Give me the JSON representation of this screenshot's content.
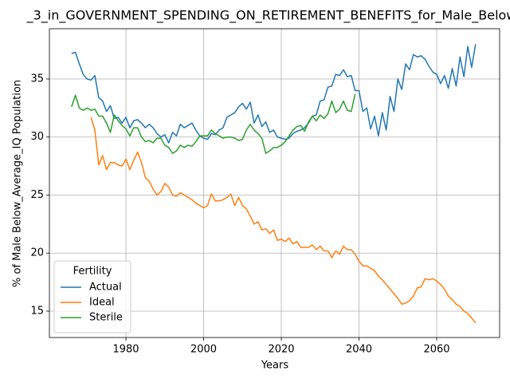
{
  "chart_data": {
    "type": "line",
    "title": "_3_in_GOVERNMENT_SPENDING_ON_RETIREMENT_BENEFITS_for_Male_Below_",
    "x_label": "Years",
    "y_label": "% of Male Below_Average_IQ Population",
    "legend_title": "Fertility",
    "legend_position": "lower left",
    "grid": true,
    "xlim": [
      1960.3,
      2076.2
    ],
    "ylim": [
      12.73,
      39.33
    ],
    "xticks": [
      1980,
      2000,
      2020,
      2040,
      2060
    ],
    "yticks": [
      15,
      20,
      25,
      30,
      35
    ],
    "x": [
      1966,
      1967,
      1968,
      1969,
      1970,
      1971,
      1972,
      1973,
      1974,
      1975,
      1976,
      1977,
      1978,
      1979,
      1980,
      1981,
      1982,
      1983,
      1984,
      1985,
      1986,
      1987,
      1988,
      1989,
      1990,
      1991,
      1992,
      1993,
      1994,
      1995,
      1996,
      1997,
      1998,
      1999,
      2000,
      2001,
      2002,
      2003,
      2004,
      2005,
      2006,
      2007,
      2008,
      2009,
      2010,
      2011,
      2012,
      2013,
      2014,
      2015,
      2016,
      2017,
      2018,
      2019,
      2020,
      2021,
      2022,
      2023,
      2024,
      2025,
      2026,
      2027,
      2028,
      2029,
      2030,
      2031,
      2032,
      2033,
      2034,
      2035,
      2036,
      2037,
      2038,
      2039,
      2040,
      2041,
      2042,
      2043,
      2044,
      2045,
      2046,
      2047,
      2048,
      2049,
      2050,
      2051,
      2052,
      2053,
      2054,
      2055,
      2056,
      2057,
      2058,
      2059,
      2060,
      2061,
      2062,
      2063,
      2064,
      2065,
      2066,
      2067,
      2068,
      2069,
      2070
    ],
    "series": [
      {
        "name": "Actual",
        "color": "#1f77b4",
        "values": [
          37.2,
          37.3,
          36.3,
          35.4,
          35.0,
          34.9,
          35.3,
          33.4,
          33.1,
          32.2,
          32.7,
          31.6,
          31.7,
          31.2,
          31.7,
          30.8,
          31.4,
          31.5,
          31.2,
          30.8,
          31.1,
          30.8,
          30.3,
          30.0,
          30.2,
          29.5,
          30.4,
          30.1,
          31.1,
          30.8,
          31.0,
          31.2,
          30.6,
          30.1,
          29.9,
          29.8,
          30.3,
          30.2,
          30.6,
          30.8,
          31.7,
          31.9,
          32.1,
          32.6,
          32.9,
          32.4,
          33.0,
          31.2,
          31.9,
          30.9,
          31.3,
          30.4,
          30.6,
          30.0,
          29.9,
          29.8,
          29.9,
          30.3,
          30.5,
          30.6,
          30.8,
          31.2,
          31.8,
          31.9,
          33.1,
          33.2,
          34.3,
          34.4,
          35.4,
          35.3,
          35.8,
          35.2,
          35.3,
          34.0,
          34.0,
          32.2,
          32.5,
          30.7,
          31.8,
          30.1,
          32.1,
          30.6,
          33.5,
          32.2,
          35.0,
          34.1,
          36.3,
          35.8,
          37.1,
          36.9,
          37.0,
          36.7,
          36.1,
          35.6,
          35.4,
          34.6,
          35.3,
          34.2,
          35.9,
          34.4,
          36.9,
          35.2,
          37.8,
          36.0,
          38.0
        ]
      },
      {
        "name": "Ideal",
        "color": "#ff7f0e",
        "values": [
          null,
          null,
          null,
          null,
          null,
          31.7,
          30.6,
          27.6,
          28.4,
          27.2,
          27.8,
          27.8,
          27.6,
          27.5,
          28.1,
          27.2,
          28.0,
          28.7,
          27.8,
          26.5,
          26.2,
          25.5,
          25.0,
          25.3,
          26.0,
          25.7,
          25.0,
          24.9,
          25.2,
          25.0,
          24.8,
          24.6,
          24.3,
          24.1,
          23.9,
          24.1,
          25.1,
          24.5,
          24.5,
          24.6,
          24.8,
          25.1,
          24.1,
          24.8,
          24.1,
          23.8,
          23.2,
          22.5,
          22.7,
          22.0,
          22.1,
          21.7,
          22.0,
          21.1,
          21.2,
          21.0,
          21.3,
          20.8,
          21.0,
          20.5,
          20.5,
          20.5,
          20.7,
          20.3,
          20.6,
          20.2,
          20.2,
          19.6,
          20.2,
          19.9,
          20.6,
          20.3,
          20.3,
          19.9,
          19.3,
          18.9,
          18.9,
          18.7,
          18.5,
          18.0,
          17.7,
          17.3,
          16.9,
          16.5,
          16.1,
          15.6,
          15.7,
          15.9,
          16.3,
          17.0,
          17.1,
          17.8,
          17.7,
          17.8,
          17.6,
          17.3,
          16.9,
          16.3,
          16.0,
          15.6,
          15.4,
          15.0,
          14.8,
          14.4,
          14.0
        ]
      },
      {
        "name": "Sterile",
        "color": "#2ca02c",
        "values": [
          32.6,
          33.6,
          32.5,
          32.3,
          32.5,
          32.3,
          32.4,
          31.8,
          31.8,
          31.2,
          30.4,
          31.9,
          31.4,
          31.0,
          30.7,
          30.1,
          30.8,
          30.8,
          30.0,
          29.6,
          29.7,
          29.5,
          29.9,
          29.9,
          29.3,
          29.1,
          28.6,
          28.8,
          29.3,
          29.1,
          29.3,
          29.2,
          29.6,
          30.1,
          30.1,
          30.1,
          30.6,
          30.3,
          30.1,
          29.9,
          30.0,
          30.0,
          29.9,
          29.7,
          29.8,
          30.6,
          31.1,
          30.6,
          30.3,
          29.9,
          28.6,
          28.8,
          29.1,
          29.1,
          29.3,
          29.6,
          30.1,
          30.6,
          30.9,
          31.0,
          30.5,
          31.3,
          31.8,
          31.4,
          31.9,
          31.6,
          32.0,
          33.1,
          32.1,
          32.4,
          33.1,
          32.3,
          32.2,
          33.7,
          null,
          null,
          null,
          null,
          null,
          null,
          null,
          null,
          null,
          null,
          null,
          null,
          null,
          null,
          null,
          null,
          null,
          null,
          null,
          null,
          null,
          null,
          null,
          null,
          null,
          null,
          null,
          null,
          null,
          null,
          null
        ]
      }
    ]
  }
}
